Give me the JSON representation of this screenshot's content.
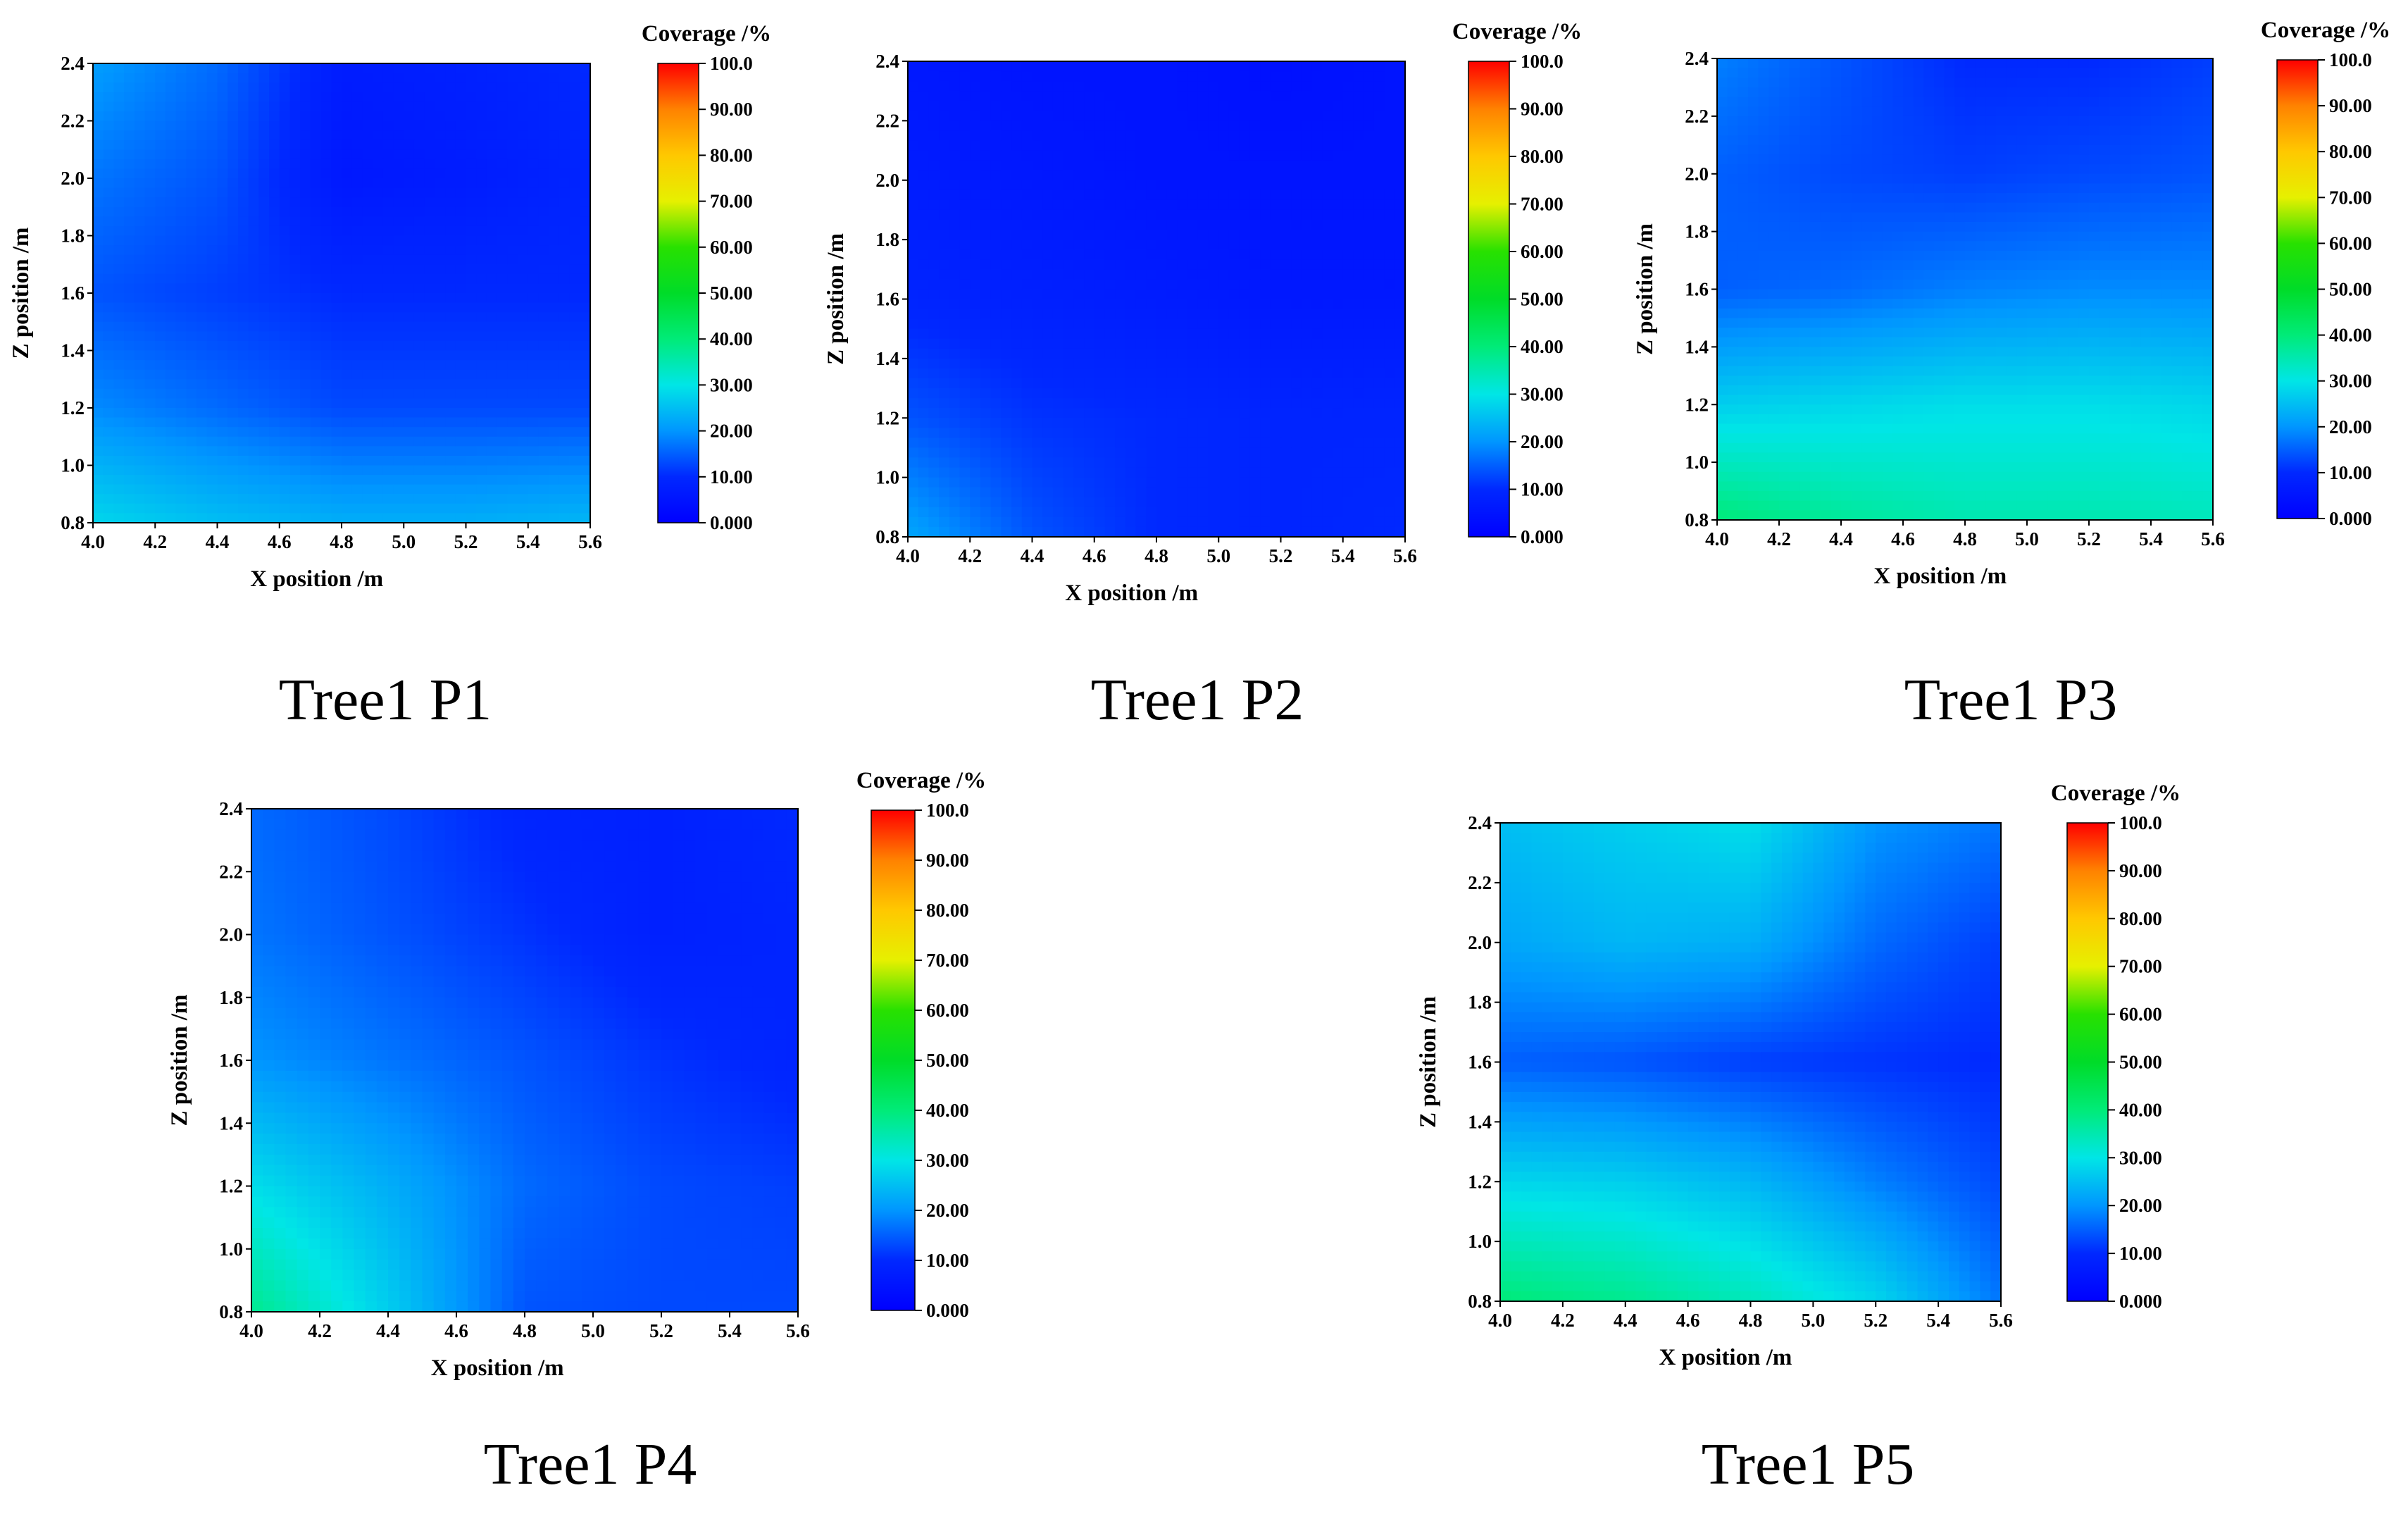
{
  "chart_data": [
    {
      "type": "heatmap",
      "caption": "Tree1 P1",
      "xlabel": "X position /m",
      "ylabel": "Z position /m",
      "colorbar_title": "Coverage /%",
      "xlim": [
        4.0,
        5.6
      ],
      "ylim": [
        0.8,
        2.4
      ],
      "x_ticks": [
        "4.0",
        "4.2",
        "4.4",
        "4.6",
        "4.8",
        "5.0",
        "5.2",
        "5.4",
        "5.6"
      ],
      "y_ticks": [
        "0.8",
        "1.0",
        "1.2",
        "1.4",
        "1.6",
        "1.8",
        "2.0",
        "2.2",
        "2.4"
      ],
      "colorbar_ticks": [
        "0.000",
        "10.00",
        "20.00",
        "30.00",
        "40.00",
        "50.00",
        "60.00",
        "70.00",
        "80.00",
        "90.00",
        "100.0"
      ],
      "x": [
        4.0,
        4.4,
        4.8,
        5.2,
        5.6
      ],
      "z": [
        0.8,
        1.2,
        1.6,
        2.0,
        2.4
      ],
      "coverage": [
        [
          28,
          25,
          23,
          23,
          24
        ],
        [
          19,
          16,
          13,
          13,
          13
        ],
        [
          14,
          12,
          10,
          10,
          10
        ],
        [
          17,
          14,
          6,
          7,
          9
        ],
        [
          21,
          16,
          7,
          8,
          10
        ]
      ]
    },
    {
      "type": "heatmap",
      "caption": "Tree1 P2",
      "xlabel": "X position /m",
      "ylabel": "Z position /m",
      "colorbar_title": "Coverage /%",
      "xlim": [
        4.0,
        5.6
      ],
      "ylim": [
        0.8,
        2.4
      ],
      "x_ticks": [
        "4.0",
        "4.2",
        "4.4",
        "4.6",
        "4.8",
        "5.0",
        "5.2",
        "5.4",
        "5.6"
      ],
      "y_ticks": [
        "0.8",
        "1.0",
        "1.2",
        "1.4",
        "1.6",
        "1.8",
        "2.0",
        "2.2",
        "2.4"
      ],
      "colorbar_ticks": [
        "0.000",
        "10.00",
        "20.00",
        "30.00",
        "40.00",
        "50.00",
        "60.00",
        "70.00",
        "80.00",
        "90.00",
        "100.0"
      ],
      "x": [
        4.0,
        4.4,
        4.8,
        5.2,
        5.6
      ],
      "z": [
        0.8,
        1.2,
        1.6,
        2.0,
        2.4
      ],
      "coverage": [
        [
          22,
          14,
          10,
          9,
          10
        ],
        [
          14,
          11,
          10,
          9,
          9
        ],
        [
          9,
          8,
          7,
          6,
          6
        ],
        [
          7,
          6,
          5,
          5,
          5
        ],
        [
          6,
          5,
          5,
          4,
          5
        ]
      ]
    },
    {
      "type": "heatmap",
      "caption": "Tree1 P3",
      "xlabel": "X position /m",
      "ylabel": "Z position /m",
      "colorbar_title": "Coverage /%",
      "xlim": [
        4.0,
        5.6
      ],
      "ylim": [
        0.8,
        2.4
      ],
      "x_ticks": [
        "4.0",
        "4.2",
        "4.4",
        "4.6",
        "4.8",
        "5.0",
        "5.2",
        "5.4",
        "5.6"
      ],
      "y_ticks": [
        "0.8",
        "1.0",
        "1.2",
        "1.4",
        "1.6",
        "1.8",
        "2.0",
        "2.2",
        "2.4"
      ],
      "colorbar_ticks": [
        "0.000",
        "10.00",
        "20.00",
        "30.00",
        "40.00",
        "50.00",
        "60.00",
        "70.00",
        "80.00",
        "90.00",
        "100.0"
      ],
      "x": [
        4.0,
        4.4,
        4.8,
        5.2,
        5.6
      ],
      "z": [
        0.8,
        1.2,
        1.6,
        2.0,
        2.4
      ],
      "coverage": [
        [
          40,
          37,
          35,
          35,
          34
        ],
        [
          27,
          28,
          29,
          29,
          28
        ],
        [
          15,
          16,
          18,
          19,
          19
        ],
        [
          15,
          13,
          12,
          13,
          14
        ],
        [
          18,
          14,
          10,
          10,
          12
        ]
      ]
    },
    {
      "type": "heatmap",
      "caption": "Tree1 P4",
      "xlabel": "X position /m",
      "ylabel": "Z position /m",
      "colorbar_title": "Coverage /%",
      "xlim": [
        4.0,
        5.6
      ],
      "ylim": [
        0.8,
        2.4
      ],
      "x_ticks": [
        "4.0",
        "4.2",
        "4.4",
        "4.6",
        "4.8",
        "5.0",
        "5.2",
        "5.4",
        "5.6"
      ],
      "y_ticks": [
        "0.8",
        "1.0",
        "1.2",
        "1.4",
        "1.6",
        "1.8",
        "2.0",
        "2.2",
        "2.4"
      ],
      "colorbar_ticks": [
        "0.000",
        "10.00",
        "20.00",
        "30.00",
        "40.00",
        "50.00",
        "60.00",
        "70.00",
        "80.00",
        "90.00",
        "100.0"
      ],
      "x": [
        4.0,
        4.4,
        4.8,
        5.2,
        5.6
      ],
      "z": [
        0.8,
        1.2,
        1.6,
        2.0,
        2.4
      ],
      "coverage": [
        [
          38,
          27,
          14,
          13,
          13
        ],
        [
          29,
          23,
          16,
          13,
          12
        ],
        [
          20,
          17,
          14,
          11,
          9
        ],
        [
          17,
          14,
          11,
          8,
          9
        ],
        [
          16,
          13,
          9,
          8,
          10
        ]
      ]
    },
    {
      "type": "heatmap",
      "caption": "Tree1 P5",
      "xlabel": "X position /m",
      "ylabel": "Z position /m",
      "colorbar_title": "Coverage /%",
      "xlim": [
        4.0,
        5.6
      ],
      "ylim": [
        0.8,
        2.4
      ],
      "x_ticks": [
        "4.0",
        "4.2",
        "4.4",
        "4.6",
        "4.8",
        "5.0",
        "5.2",
        "5.4",
        "5.6"
      ],
      "y_ticks": [
        "0.8",
        "1.0",
        "1.2",
        "1.4",
        "1.6",
        "1.8",
        "2.0",
        "2.2",
        "2.4"
      ],
      "colorbar_ticks": [
        "0.000",
        "10.00",
        "20.00",
        "30.00",
        "40.00",
        "50.00",
        "60.00",
        "70.00",
        "80.00",
        "90.00",
        "100.0"
      ],
      "x": [
        4.0,
        4.4,
        4.8,
        5.2,
        5.6
      ],
      "z": [
        0.8,
        1.2,
        1.6,
        2.0,
        2.4
      ],
      "coverage": [
        [
          40,
          38,
          34,
          28,
          17
        ],
        [
          28,
          27,
          24,
          18,
          13
        ],
        [
          15,
          14,
          12,
          11,
          10
        ],
        [
          22,
          24,
          23,
          16,
          12
        ],
        [
          25,
          27,
          29,
          20,
          17
        ]
      ]
    }
  ]
}
